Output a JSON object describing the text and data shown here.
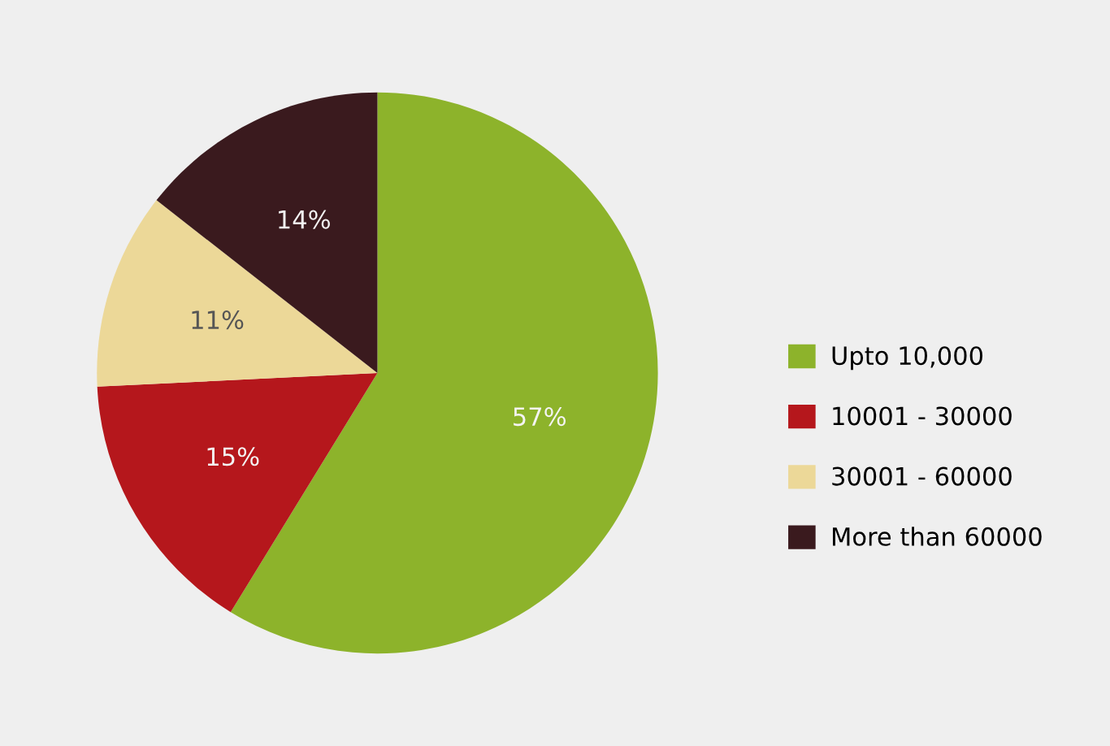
{
  "chart_data": {
    "type": "pie",
    "categories": [
      "Upto 10,000",
      "10001 - 30000",
      "30001 - 60000",
      "More than 60000"
    ],
    "values": [
      57,
      15,
      11,
      14
    ],
    "colors": [
      "#8db32b",
      "#b5171c",
      "#ecd898",
      "#3a1a1e"
    ],
    "value_labels": [
      "57%",
      "15%",
      "11%",
      "14%"
    ],
    "legend": "right"
  }
}
